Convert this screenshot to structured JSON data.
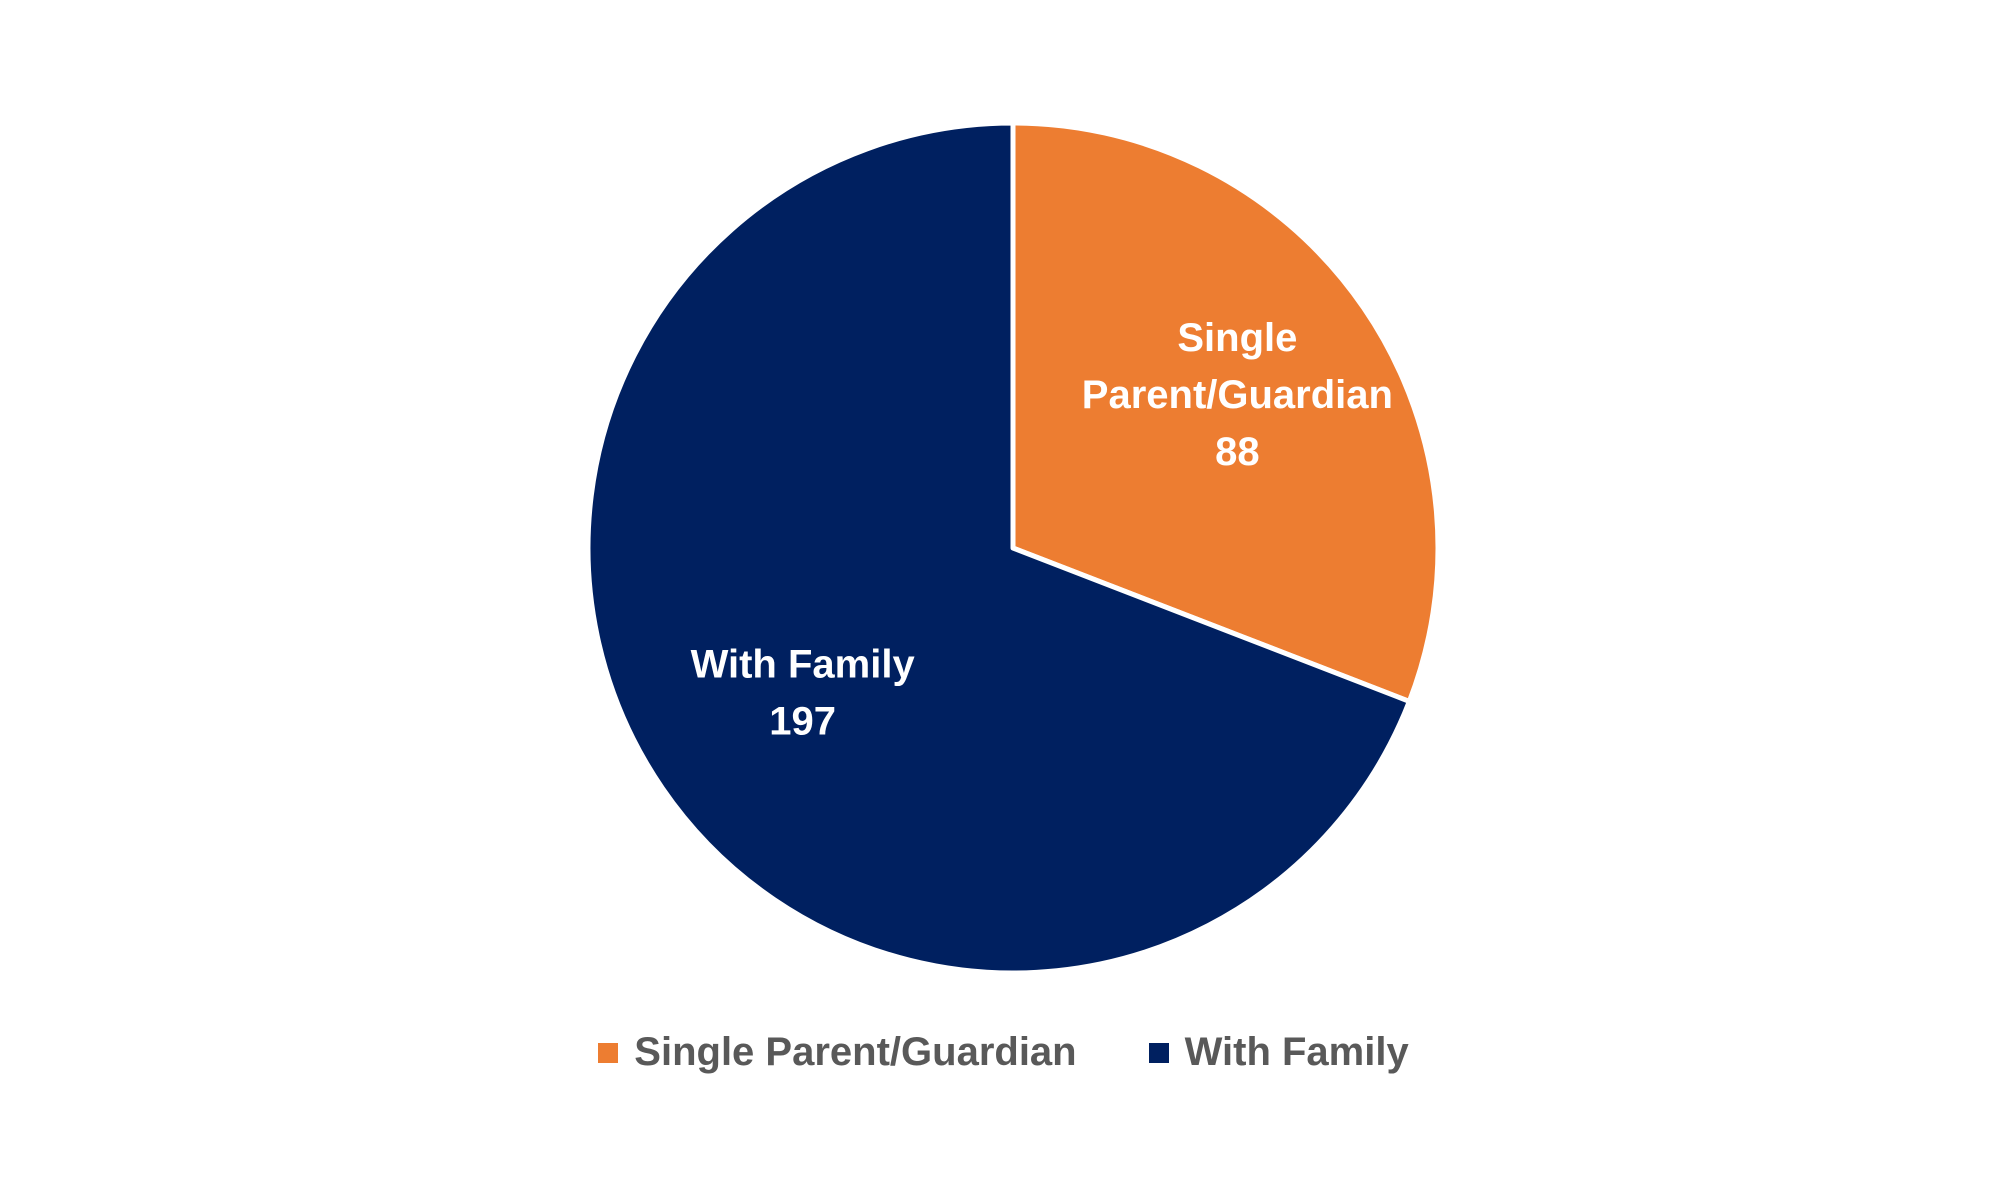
{
  "chart_data": {
    "type": "pie",
    "title": "",
    "slices": [
      {
        "label": "Single Parent/Guardian",
        "label_lines": [
          "Single",
          "Parent/Guardian"
        ],
        "value": 88,
        "color": "#ED7D31"
      },
      {
        "label": "With Family",
        "label_lines": [
          "With Family"
        ],
        "value": 197,
        "color": "#002060"
      }
    ],
    "start_angle_deg": 0,
    "direction": "clockwise",
    "data_labels": "inside",
    "legend": {
      "position": "bottom",
      "entries": [
        {
          "label": "Single Parent/Guardian",
          "color": "#ED7D31"
        },
        {
          "label": "With Family",
          "color": "#002060"
        }
      ]
    }
  }
}
